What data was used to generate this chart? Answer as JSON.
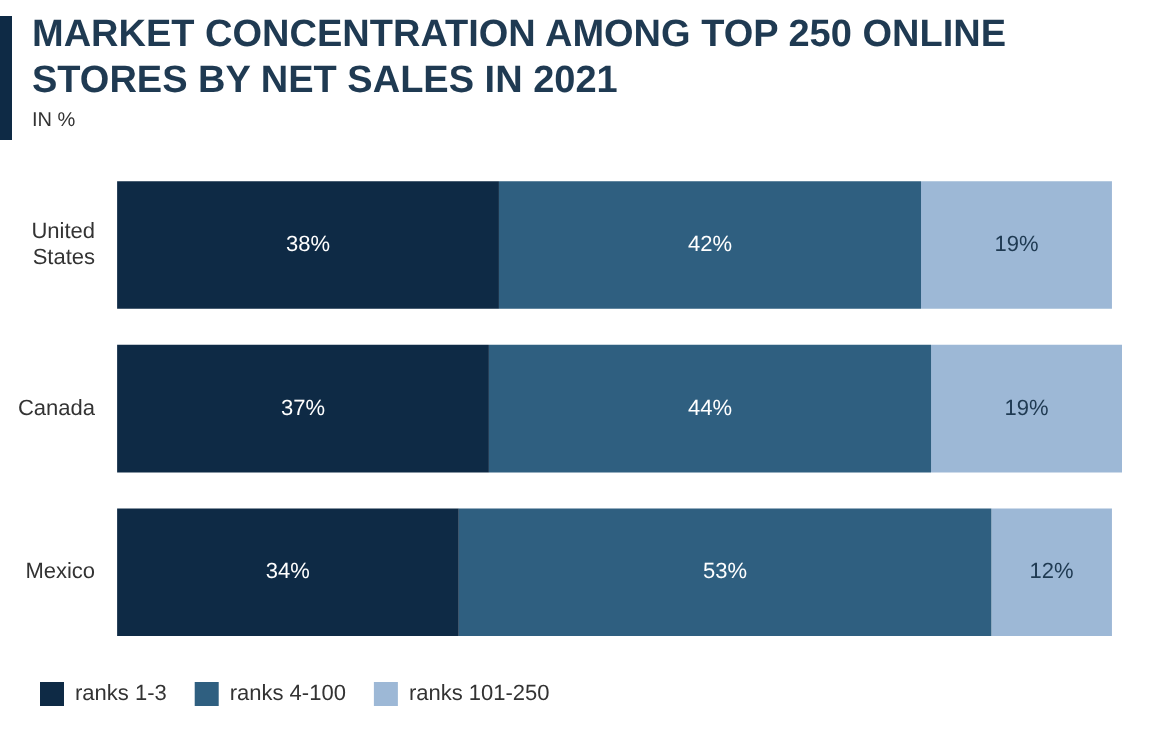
{
  "chart_data": {
    "type": "bar",
    "orientation": "horizontal",
    "stacked": true,
    "title": "MARKET CONCENTRATION AMONG TOP 250 ONLINE STORES BY NET SALES IN 2021",
    "subtitle": "IN %",
    "categories": [
      "United States",
      "Canada",
      "Mexico"
    ],
    "series": [
      {
        "name": "ranks 1-3",
        "color": "#0e2a45",
        "values": [
          38,
          37,
          34
        ],
        "value_labels": [
          "38%",
          "37%",
          "34%"
        ]
      },
      {
        "name": "ranks 4-100",
        "color": "#2f5f80",
        "values": [
          42,
          44,
          53
        ],
        "value_labels": [
          "42%",
          "44%",
          "53%"
        ]
      },
      {
        "name": "ranks 101-250",
        "color": "#9db8d6",
        "values": [
          19,
          19,
          12
        ],
        "value_labels": [
          "19%",
          "19%",
          "12%"
        ]
      }
    ],
    "legend": "bottom left"
  }
}
